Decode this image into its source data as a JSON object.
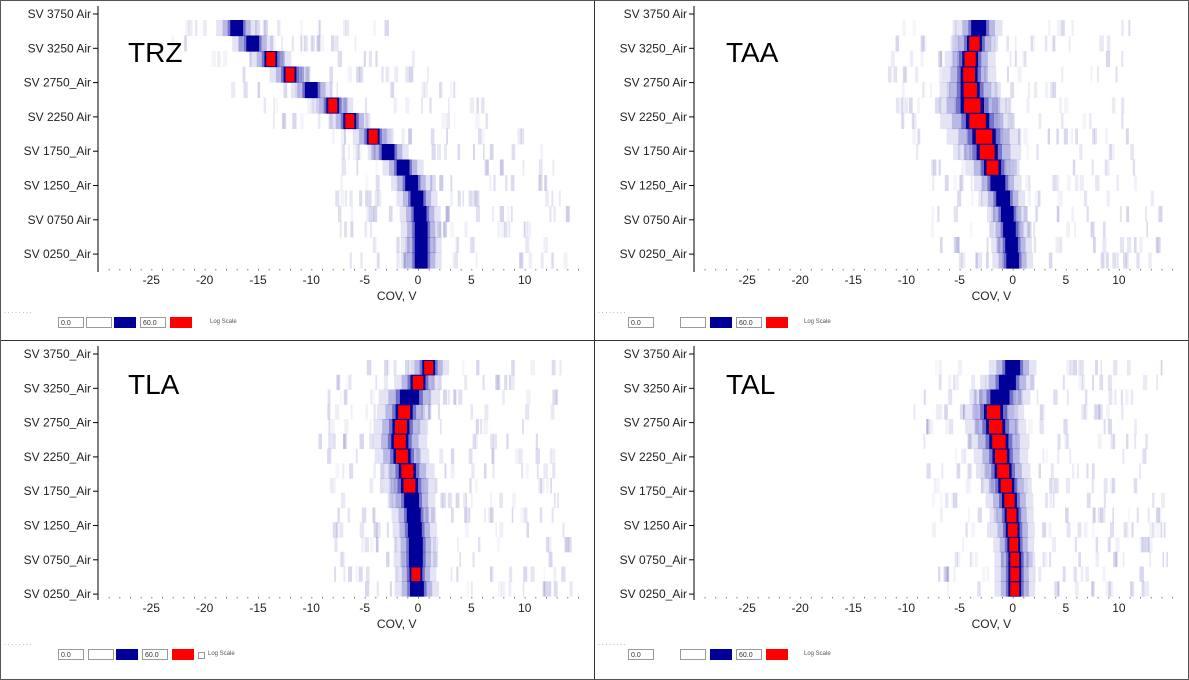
{
  "chart_data": [
    {
      "type": "heatmap",
      "title": "TRZ",
      "xlabel": "COV, V",
      "xlim": [
        -30,
        15
      ],
      "xticks": [
        -25,
        -20,
        -15,
        -10,
        -5,
        0,
        5,
        10
      ],
      "rows": [
        "SV 3750  Air",
        "SV 3250  Air",
        "SV 2750_Air",
        "SV 2250  Air",
        "SV 1750_Air",
        "SV 1250_Air",
        "SV 0750  Air",
        "SV 0250_Air"
      ],
      "peak_cov": [
        -17,
        -15.5,
        -13.8,
        -12,
        -10,
        -8,
        -6.4,
        -4.2,
        -2.8,
        -1.4,
        -0.6,
        -0.1,
        0.2,
        0.3,
        0.3,
        0.3
      ],
      "peak_hot": [
        0,
        0,
        1,
        1,
        0,
        1,
        1,
        1,
        0,
        0,
        0,
        0,
        0,
        0,
        0,
        0
      ],
      "peak_width": [
        1.2,
        1.2,
        1.2,
        1.2,
        1.2,
        1.2,
        1.2,
        1.2,
        1.2,
        1.2,
        1.2,
        1.2,
        1.2,
        1.2,
        1.2,
        1.2
      ]
    },
    {
      "type": "heatmap",
      "title": "TAA",
      "xlabel": "COV, V",
      "xlim": [
        -30,
        15
      ],
      "xticks": [
        -25,
        -20,
        -15,
        -10,
        -5,
        0,
        5,
        10
      ],
      "rows": [
        "SV 3750  Air",
        "SV 3250_Air",
        "SV 2750  Air",
        "SV 2250_Air",
        "SV 1750  Air",
        "SV 1250_Air",
        "SV 0750  Air",
        "SV 0250_Air"
      ],
      "peak_cov": [
        -3.2,
        -3.6,
        -4,
        -4.1,
        -4,
        -3.8,
        -3.3,
        -2.7,
        -2.4,
        -1.9,
        -1.4,
        -0.9,
        -0.5,
        -0.3,
        -0.1,
        0
      ],
      "peak_hot": [
        0,
        1,
        1,
        1,
        1,
        1,
        1,
        1,
        1,
        1,
        0,
        0,
        0,
        0,
        0,
        0
      ],
      "peak_width": [
        1.4,
        1.4,
        1.5,
        1.6,
        1.8,
        2.2,
        2.2,
        2.2,
        2.0,
        1.6,
        1.4,
        1.3,
        1.2,
        1.2,
        1.2,
        1.2
      ]
    },
    {
      "type": "heatmap",
      "title": "TLA",
      "xlabel": "COV, V",
      "xlim": [
        -30,
        15
      ],
      "xticks": [
        -25,
        -20,
        -15,
        -10,
        -5,
        0,
        5,
        10
      ],
      "rows": [
        "SV 3750_Air",
        "SV 3250_Air",
        "SV 2750_Air",
        "SV 2250_Air",
        "SV 1750_Air",
        "SV 1250_Air",
        "SV 0750_Air",
        "SV 0250_Air"
      ],
      "peak_cov": [
        1,
        0,
        -0.8,
        -1.3,
        -1.6,
        -1.7,
        -1.5,
        -1,
        -0.8,
        -0.6,
        -0.4,
        -0.3,
        -0.2,
        -0.2,
        -0.2,
        -0.1
      ],
      "peak_hot": [
        1,
        1,
        0,
        1,
        1,
        1,
        1,
        1,
        1,
        0,
        0,
        0,
        0,
        0,
        1,
        0
      ],
      "peak_width": [
        1.2,
        1.4,
        1.8,
        1.6,
        1.6,
        1.6,
        1.6,
        1.6,
        1.6,
        1.4,
        1.3,
        1.3,
        1.3,
        1.3,
        1.2,
        1.3
      ]
    },
    {
      "type": "heatmap",
      "title": "TAL",
      "xlabel": "COV, V",
      "xlim": [
        -30,
        15
      ],
      "xticks": [
        -25,
        -20,
        -15,
        -10,
        -5,
        0,
        5,
        10
      ],
      "rows": [
        "SV 3750  Air",
        "SV 3250  Air",
        "SV 2750  Air",
        "SV 2250_Air",
        "SV 1750_Air",
        "SV 1250  Air",
        "SV 0750_Air",
        "SV 0250_Air"
      ],
      "peak_cov": [
        0,
        -0.5,
        -1.2,
        -1.8,
        -1.6,
        -1.3,
        -1.1,
        -0.9,
        -0.6,
        -0.3,
        -0.1,
        0,
        0.1,
        0.2,
        0.2,
        0.2
      ],
      "peak_hot": [
        0,
        0,
        0,
        1,
        1,
        1,
        1,
        1,
        1,
        1,
        1,
        1,
        1,
        1,
        1,
        1
      ],
      "peak_width": [
        1.4,
        1.6,
        1.8,
        1.8,
        1.8,
        1.8,
        1.6,
        1.6,
        1.5,
        1.4,
        1.3,
        1.3,
        1.2,
        1.2,
        1.2,
        1.2
      ]
    }
  ],
  "controls": {
    "min_value": "0.0",
    "max_value": "60.0",
    "log_scale_label": "Log Scale",
    "min_color": "#000099",
    "max_color": "#ff0000"
  },
  "colors": {
    "low": "#d8d8f0",
    "mid": "#000099",
    "high": "#ff0000"
  }
}
